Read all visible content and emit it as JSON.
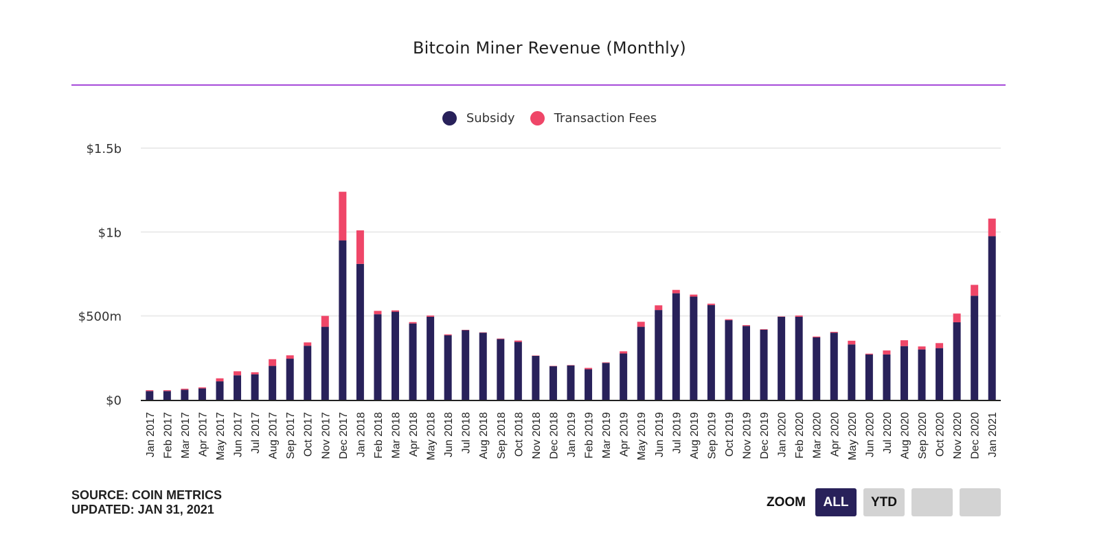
{
  "chart_data": {
    "type": "bar",
    "stacked": true,
    "title": "Bitcoin Miner Revenue (Monthly)",
    "xlabel": "",
    "ylabel": "",
    "ylim": [
      0,
      1500
    ],
    "y_unit": "USD millions",
    "yticks": [
      {
        "value": 0,
        "label": "$0"
      },
      {
        "value": 500,
        "label": "$500m"
      },
      {
        "value": 1000,
        "label": "$1b"
      },
      {
        "value": 1500,
        "label": "$1.5b"
      }
    ],
    "grid": true,
    "legend_position": "top-center",
    "categories": [
      "Jan 2017",
      "Feb 2017",
      "Mar 2017",
      "Apr 2017",
      "May 2017",
      "Jun 2017",
      "Jul 2017",
      "Aug 2017",
      "Sep 2017",
      "Oct 2017",
      "Nov 2017",
      "Dec 2017",
      "Jan 2018",
      "Feb 2018",
      "Mar 2018",
      "Apr 2018",
      "May 2018",
      "Jun 2018",
      "Jul 2018",
      "Aug 2018",
      "Sep 2018",
      "Oct 2018",
      "Nov 2018",
      "Dec 2018",
      "Jan 2019",
      "Feb 2019",
      "Mar 2019",
      "Apr 2019",
      "May 2019",
      "Jun 2019",
      "Jul 2019",
      "Aug 2019",
      "Sep 2019",
      "Oct 2019",
      "Nov 2019",
      "Dec 2019",
      "Jan 2020",
      "Feb 2020",
      "Mar 2020",
      "Apr 2020",
      "May 2020",
      "Jun 2020",
      "Jul 2020",
      "Aug 2020",
      "Sep 2020",
      "Oct 2020",
      "Nov 2020",
      "Dec 2020",
      "Jan 2021"
    ],
    "series": [
      {
        "name": "Subsidy",
        "color": "#28215a",
        "values": [
          52,
          52,
          60,
          68,
          110,
          146,
          152,
          202,
          245,
          322,
          435,
          950,
          810,
          510,
          525,
          455,
          495,
          385,
          415,
          400,
          362,
          345,
          262,
          200,
          205,
          182,
          220,
          276,
          435,
          535,
          635,
          615,
          565,
          475,
          440,
          418,
          495,
          495,
          372,
          400,
          330,
          270,
          270,
          320,
          300,
          308,
          462,
          620,
          975
        ]
      },
      {
        "name": "Transaction Fees",
        "color": "#ef4668",
        "values": [
          5,
          5,
          6,
          6,
          18,
          24,
          12,
          40,
          20,
          20,
          65,
          290,
          200,
          20,
          8,
          8,
          7,
          5,
          2,
          2,
          3,
          8,
          2,
          2,
          2,
          8,
          3,
          13,
          30,
          28,
          20,
          12,
          8,
          5,
          5,
          3,
          2,
          7,
          5,
          5,
          22,
          5,
          24,
          35,
          18,
          30,
          52,
          65,
          105
        ]
      }
    ]
  },
  "legend": {
    "items": [
      {
        "label": "Subsidy",
        "color": "#28215a"
      },
      {
        "label": "Transaction Fees",
        "color": "#ef4668"
      }
    ]
  },
  "footer": {
    "source": "SOURCE: COIN METRICS",
    "updated": "UPDATED: JAN 31, 2021"
  },
  "zoom": {
    "label": "ZOOM",
    "buttons": [
      {
        "label": "ALL",
        "active": true
      },
      {
        "label": "YTD",
        "active": false
      },
      {
        "label": "",
        "active": false
      },
      {
        "label": "",
        "active": false
      }
    ]
  }
}
